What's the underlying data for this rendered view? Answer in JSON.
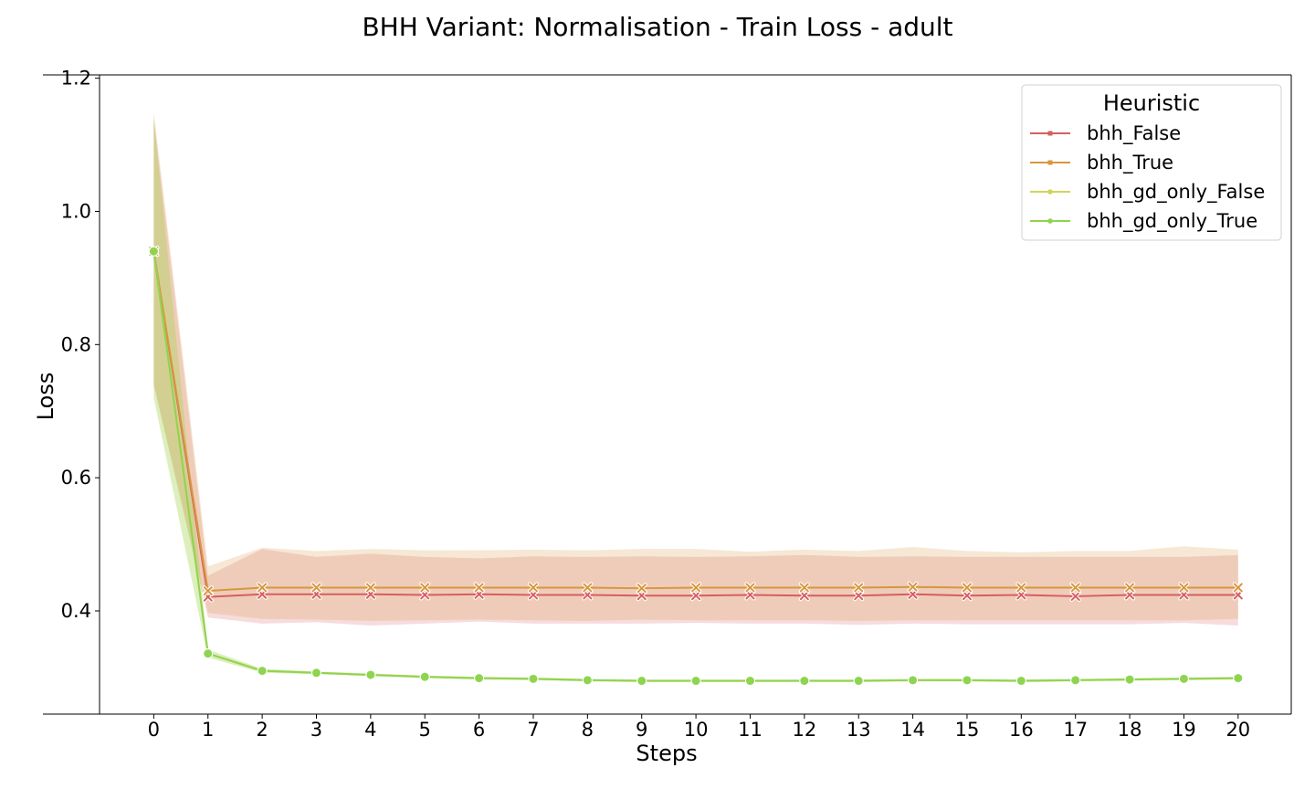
{
  "chart_data": {
    "type": "line",
    "title": "BHH Variant: Normalisation - Train Loss - adult",
    "xlabel": "Steps",
    "ylabel": "Loss",
    "x": [
      0,
      1,
      2,
      3,
      4,
      5,
      6,
      7,
      8,
      9,
      10,
      11,
      12,
      13,
      14,
      15,
      16,
      17,
      18,
      19,
      20
    ],
    "xlim": [
      -1,
      20.98
    ],
    "ylim": [
      0.245,
      1.205
    ],
    "yticks": [
      0.4,
      0.6,
      0.8,
      1.0,
      1.2
    ],
    "ytick_labels": [
      "0.4",
      "0.6",
      "0.8",
      "1.0",
      "1.2"
    ],
    "xtick_labels": [
      "0",
      "1",
      "2",
      "3",
      "4",
      "5",
      "6",
      "7",
      "8",
      "9",
      "10",
      "11",
      "12",
      "13",
      "14",
      "15",
      "16",
      "17",
      "18",
      "19",
      "20"
    ],
    "grid": false,
    "legend": {
      "title": "Heuristic",
      "placement": "top-right"
    },
    "series": [
      {
        "name": "bhh_False",
        "color": "#d65f5f",
        "marker": "x",
        "values": [
          0.94,
          0.421,
          0.425,
          0.425,
          0.425,
          0.424,
          0.425,
          0.424,
          0.424,
          0.423,
          0.423,
          0.424,
          0.423,
          0.423,
          0.425,
          0.423,
          0.424,
          0.422,
          0.424,
          0.424,
          0.424
        ],
        "ci_lower": [
          0.74,
          0.39,
          0.381,
          0.383,
          0.378,
          0.381,
          0.384,
          0.381,
          0.381,
          0.381,
          0.382,
          0.381,
          0.381,
          0.379,
          0.381,
          0.38,
          0.38,
          0.38,
          0.38,
          0.382,
          0.378
        ],
        "ci_upper": [
          1.14,
          0.453,
          0.493,
          0.481,
          0.486,
          0.481,
          0.479,
          0.482,
          0.481,
          0.482,
          0.481,
          0.482,
          0.484,
          0.481,
          0.482,
          0.481,
          0.481,
          0.481,
          0.481,
          0.481,
          0.484
        ]
      },
      {
        "name": "bhh_True",
        "color": "#d8963f",
        "marker": "x",
        "values": [
          0.94,
          0.43,
          0.435,
          0.435,
          0.435,
          0.435,
          0.435,
          0.435,
          0.435,
          0.434,
          0.435,
          0.435,
          0.435,
          0.435,
          0.436,
          0.435,
          0.435,
          0.435,
          0.435,
          0.435,
          0.435
        ],
        "ci_lower": [
          0.74,
          0.397,
          0.388,
          0.387,
          0.385,
          0.386,
          0.387,
          0.386,
          0.385,
          0.387,
          0.386,
          0.386,
          0.386,
          0.385,
          0.386,
          0.386,
          0.386,
          0.386,
          0.386,
          0.386,
          0.388
        ],
        "ci_upper": [
          1.15,
          0.467,
          0.495,
          0.49,
          0.493,
          0.491,
          0.491,
          0.492,
          0.491,
          0.493,
          0.493,
          0.489,
          0.492,
          0.49,
          0.496,
          0.49,
          0.488,
          0.49,
          0.49,
          0.497,
          0.492
        ]
      },
      {
        "name": "bhh_gd_only_False",
        "color": "#cfd45b",
        "marker": "dot",
        "values": [
          0.94,
          0.336,
          0.31,
          0.307,
          0.304,
          0.301,
          0.299,
          0.298,
          0.296,
          0.295,
          0.295,
          0.295,
          0.295,
          0.295,
          0.296,
          0.296,
          0.295,
          0.296,
          0.297,
          0.298,
          0.299
        ],
        "ci_lower": [
          0.72,
          0.33,
          0.307,
          0.305,
          0.302,
          0.299,
          0.297,
          0.296,
          0.294,
          0.293,
          0.293,
          0.293,
          0.293,
          0.293,
          0.294,
          0.294,
          0.293,
          0.294,
          0.295,
          0.296,
          0.297
        ],
        "ci_upper": [
          1.14,
          0.342,
          0.313,
          0.309,
          0.306,
          0.303,
          0.301,
          0.3,
          0.298,
          0.297,
          0.297,
          0.297,
          0.297,
          0.297,
          0.298,
          0.298,
          0.297,
          0.298,
          0.299,
          0.3,
          0.301
        ]
      },
      {
        "name": "bhh_gd_only_True",
        "color": "#8fd450",
        "marker": "dot",
        "values": [
          0.94,
          0.336,
          0.31,
          0.307,
          0.304,
          0.301,
          0.299,
          0.298,
          0.296,
          0.295,
          0.295,
          0.295,
          0.295,
          0.295,
          0.296,
          0.296,
          0.295,
          0.296,
          0.297,
          0.298,
          0.299
        ],
        "ci_lower": [
          0.72,
          0.33,
          0.307,
          0.305,
          0.302,
          0.299,
          0.297,
          0.296,
          0.294,
          0.293,
          0.293,
          0.293,
          0.293,
          0.293,
          0.294,
          0.294,
          0.293,
          0.294,
          0.295,
          0.296,
          0.297
        ],
        "ci_upper": [
          1.14,
          0.342,
          0.313,
          0.309,
          0.306,
          0.303,
          0.301,
          0.3,
          0.298,
          0.297,
          0.297,
          0.297,
          0.297,
          0.297,
          0.298,
          0.298,
          0.297,
          0.298,
          0.299,
          0.3,
          0.301
        ]
      }
    ]
  }
}
